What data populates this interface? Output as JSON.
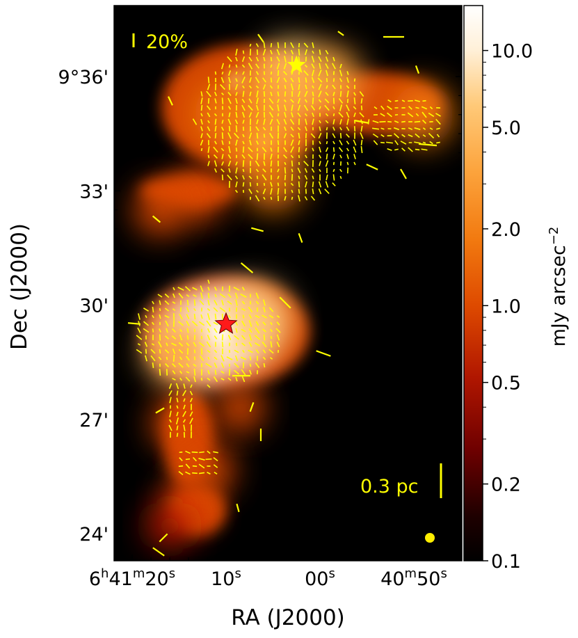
{
  "chart_data": {
    "type": "heatmap",
    "xlabel": "RA (J2000)",
    "ylabel": "Dec (J2000)",
    "x_ticks": [
      {
        "value_s": 20,
        "label_main": "6",
        "sup1": "h",
        "mid": "41",
        "sup2": "m",
        "sec": "20",
        "sup3": "s"
      },
      {
        "value_s": 10,
        "label_main": "10",
        "sup3": "s"
      },
      {
        "value_s": 0,
        "label_main": "00",
        "sup3": "s"
      },
      {
        "value_s": -10,
        "label_main": "40",
        "sup2": "m",
        "sec": "50",
        "sup3": "s"
      }
    ],
    "y_ticks": [
      {
        "value_arcmin": 36,
        "label": "9°36'"
      },
      {
        "value_arcmin": 33,
        "label": "33'"
      },
      {
        "value_arcmin": 30,
        "label": "30'"
      },
      {
        "value_arcmin": 27,
        "label": "27'"
      },
      {
        "value_arcmin": 24,
        "label": "24'"
      }
    ],
    "colorbar": {
      "label": "mJy arcsec",
      "label_exponent": "−2",
      "scale": "log",
      "range": [
        0.1,
        15
      ],
      "ticks": [
        {
          "value": 10.0,
          "label": "10.0"
        },
        {
          "value": 5.0,
          "label": "5.0"
        },
        {
          "value": 2.0,
          "label": "2.0"
        },
        {
          "value": 1.0,
          "label": "1.0"
        },
        {
          "value": 0.5,
          "label": "0.5"
        },
        {
          "value": 0.2,
          "label": "0.2"
        },
        {
          "value": 0.1,
          "label": "0.1"
        }
      ],
      "colormap": "afmhot"
    },
    "annotations": {
      "polarization_scale": "20%",
      "physical_scale": "0.3 pc"
    },
    "markers": [
      {
        "type": "star",
        "color": "#ffff00",
        "ra_s": 2.5,
        "dec_arcmin": 36.3
      },
      {
        "type": "star",
        "color": "#ff1a1a",
        "ra_s": 10.0,
        "dec_arcmin": 29.5
      }
    ],
    "emission_sources": [
      {
        "ra_s": 10.0,
        "dec_arcmin": 29.3,
        "peak": 14.0
      },
      {
        "ra_s": 13.0,
        "dec_arcmin": 29.1,
        "peak": 9.0
      },
      {
        "ra_s": 7.0,
        "dec_arcmin": 29.6,
        "peak": 5.0
      },
      {
        "ra_s": 15.0,
        "dec_arcmin": 28.8,
        "peak": 3.0
      },
      {
        "ra_s": 3.0,
        "dec_arcmin": 36.0,
        "peak": 4.5
      },
      {
        "ra_s": 6.0,
        "dec_arcmin": 34.3,
        "peak": 3.5
      },
      {
        "ra_s": 5.0,
        "dec_arcmin": 35.4,
        "peak": 3.0
      },
      {
        "ra_s": -1.0,
        "dec_arcmin": 35.9,
        "peak": 2.5
      },
      {
        "ra_s": 10.0,
        "dec_arcmin": 35.0,
        "peak": 2.0
      },
      {
        "ra_s": 5.0,
        "dec_arcmin": 33.3,
        "peak": 2.0
      },
      {
        "ra_s": -11.0,
        "dec_arcmin": 35.0,
        "peak": 1.6
      },
      {
        "ra_s": 13.0,
        "dec_arcmin": 32.9,
        "peak": 1.0
      },
      {
        "ra_s": 17.0,
        "dec_arcmin": 32.5,
        "peak": 0.8
      },
      {
        "ra_s": 15.0,
        "dec_arcmin": 26.9,
        "peak": 1.0
      },
      {
        "ra_s": 12.0,
        "dec_arcmin": 25.7,
        "peak": 0.9
      },
      {
        "ra_s": 14.0,
        "dec_arcmin": 24.8,
        "peak": 0.8
      },
      {
        "ra_s": 16.0,
        "dec_arcmin": 24.2,
        "peak": 0.5
      },
      {
        "ra_s": 8.5,
        "dec_arcmin": 27.3,
        "peak": 0.6
      }
    ]
  }
}
